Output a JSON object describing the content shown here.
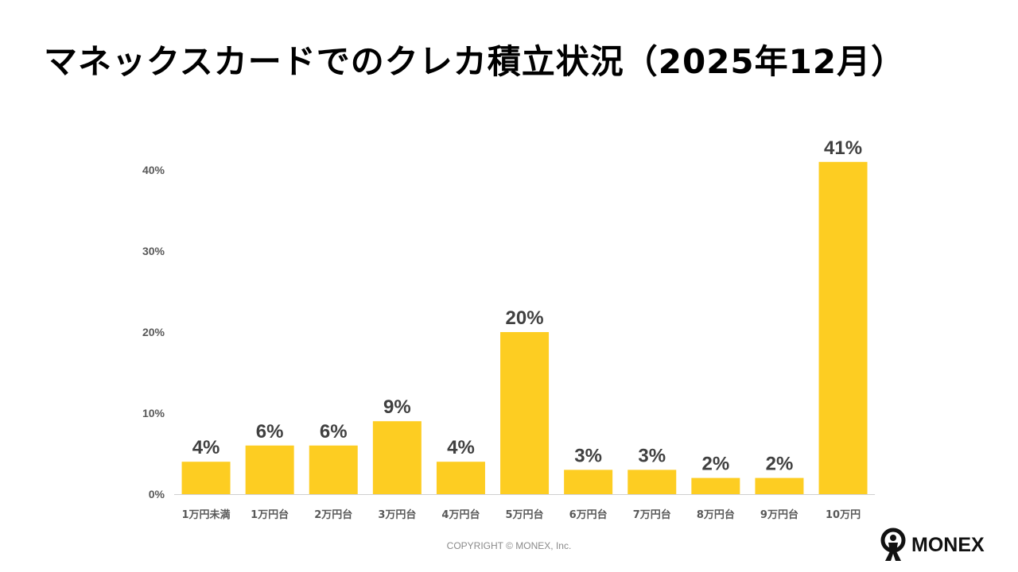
{
  "title": "マネックスカードでのクレカ積立状況（2025年12月）",
  "copyright": "COPYRIGHT © MONEX, Inc.",
  "logo": {
    "text": "MONEX"
  },
  "colors": {
    "bar": "#FDCD22",
    "axis_text": "#595959",
    "label_text": "#404040"
  },
  "chart_data": {
    "type": "bar",
    "title": "マネックスカードでのクレカ積立状況（2025年12月）",
    "categories": [
      "1万円未満",
      "1万円台",
      "2万円台",
      "3万円台",
      "4万円台",
      "5万円台",
      "6万円台",
      "7万円台",
      "8万円台",
      "9万円台",
      "10万円"
    ],
    "values": [
      4,
      6,
      6,
      9,
      4,
      20,
      3,
      3,
      2,
      2,
      41
    ],
    "data_labels": [
      "4%",
      "6%",
      "6%",
      "9%",
      "4%",
      "20%",
      "3%",
      "3%",
      "2%",
      "2%",
      "41%"
    ],
    "unit": "%",
    "ylim": [
      0,
      40
    ],
    "yticks": [
      0,
      10,
      20,
      30,
      40
    ],
    "ytick_labels": [
      "0%",
      "10%",
      "20%",
      "30%",
      "40%"
    ],
    "grid": false,
    "legend": "none"
  }
}
